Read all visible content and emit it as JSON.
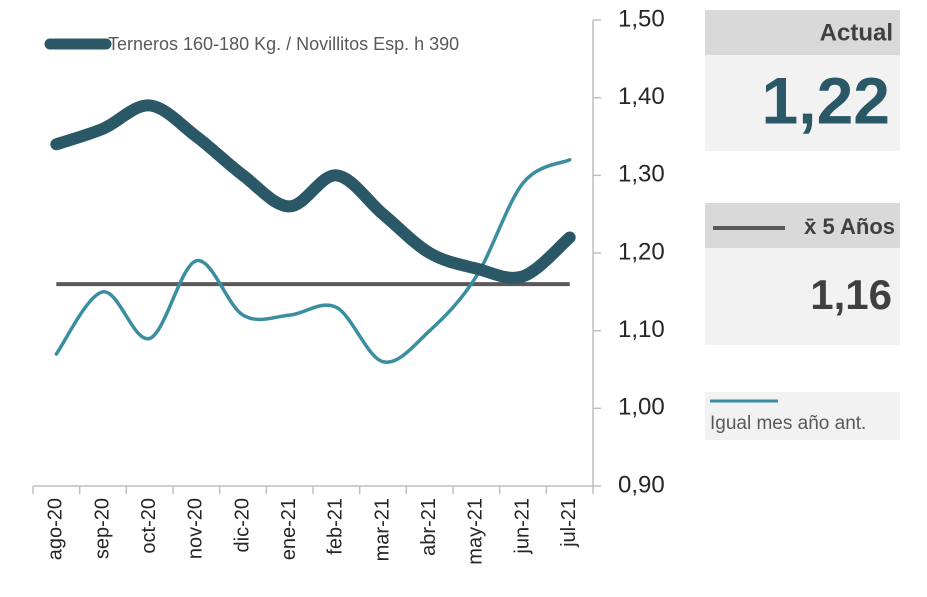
{
  "chart_data": {
    "type": "line",
    "categories": [
      "ago-20",
      "sep-20",
      "oct-20",
      "nov-20",
      "dic-20",
      "ene-21",
      "feb-21",
      "mar-21",
      "abr-21",
      "may-21",
      "jun-21",
      "jul-21"
    ],
    "series": [
      {
        "name": "Terneros 160-180 Kg. / Novillitos Esp. h 390",
        "color": "#2a5866",
        "values": [
          1.34,
          1.36,
          1.39,
          1.35,
          1.3,
          1.26,
          1.3,
          1.25,
          1.2,
          1.18,
          1.17,
          1.22
        ]
      },
      {
        "name": "Igual mes año ant.",
        "color": "#3a8ea0",
        "values": [
          1.07,
          1.15,
          1.09,
          1.19,
          1.12,
          1.12,
          1.13,
          1.06,
          1.1,
          1.17,
          1.29,
          1.32
        ]
      }
    ],
    "average": {
      "name": "x̄ 5 Años",
      "value": 1.16,
      "value_label": "1,16",
      "color": "#595959"
    },
    "actual": {
      "title": "Actual",
      "value_label": "1,22"
    },
    "ylim": [
      0.9,
      1.5
    ],
    "yticks": [
      {
        "value": 0.9,
        "label": "0,90"
      },
      {
        "value": 1.0,
        "label": "1,00"
      },
      {
        "value": 1.1,
        "label": "1,10"
      },
      {
        "value": 1.2,
        "label": "1,20"
      },
      {
        "value": 1.3,
        "label": "1,30"
      },
      {
        "value": 1.4,
        "label": "1,40"
      },
      {
        "value": 1.5,
        "label": "1,50"
      }
    ]
  }
}
